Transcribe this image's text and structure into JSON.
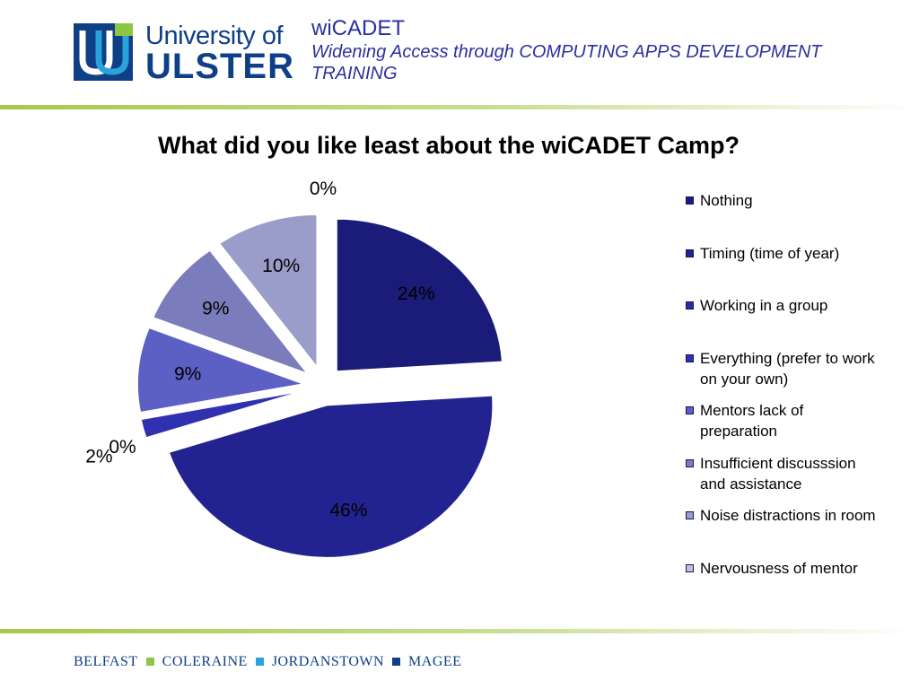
{
  "logo": {
    "line1": "University of",
    "line2": "ULSTER"
  },
  "header": {
    "title": "wiCADET",
    "subtitle": "Widening Access through COMPUTING APPS DEVELOPMENT TRAINING"
  },
  "colors": {
    "rule_green": "#a6c949",
    "header_blue": "#2c2fa0",
    "logo_blue": "#0f3f86"
  },
  "chart_data": {
    "type": "pie",
    "title": "What did you like least about the wiCADET Camp?",
    "exploded": true,
    "start_angle_deg": 0,
    "direction": "clockwise",
    "legend_position": "right",
    "categories": [
      "Nothing",
      "Timing (time of year)",
      "Working in a group",
      "Everything (prefer to work on your own)",
      "Mentors lack of preparation",
      "Insufficient discusssion and assistance",
      "Noise distractions in room",
      "Nervousness of mentor"
    ],
    "values": [
      24,
      46,
      0,
      2,
      9,
      9,
      10,
      0
    ],
    "labels": [
      "24%",
      "46%",
      "0%",
      "2%",
      "9%",
      "9%",
      "10%",
      "0%"
    ],
    "colors": [
      "#1b1b7a",
      "#222391",
      "#2a2ca4",
      "#2f31b0",
      "#5c5fc4",
      "#7a7cbb",
      "#9a9cc9",
      "#bfc0dc"
    ]
  },
  "footer": {
    "campuses": [
      "BELFAST",
      "COLERAINE",
      "JORDANSTOWN",
      "MAGEE"
    ],
    "separator_colors": [
      "#8dc63f",
      "#29a3dc",
      "#0f3f86"
    ]
  }
}
